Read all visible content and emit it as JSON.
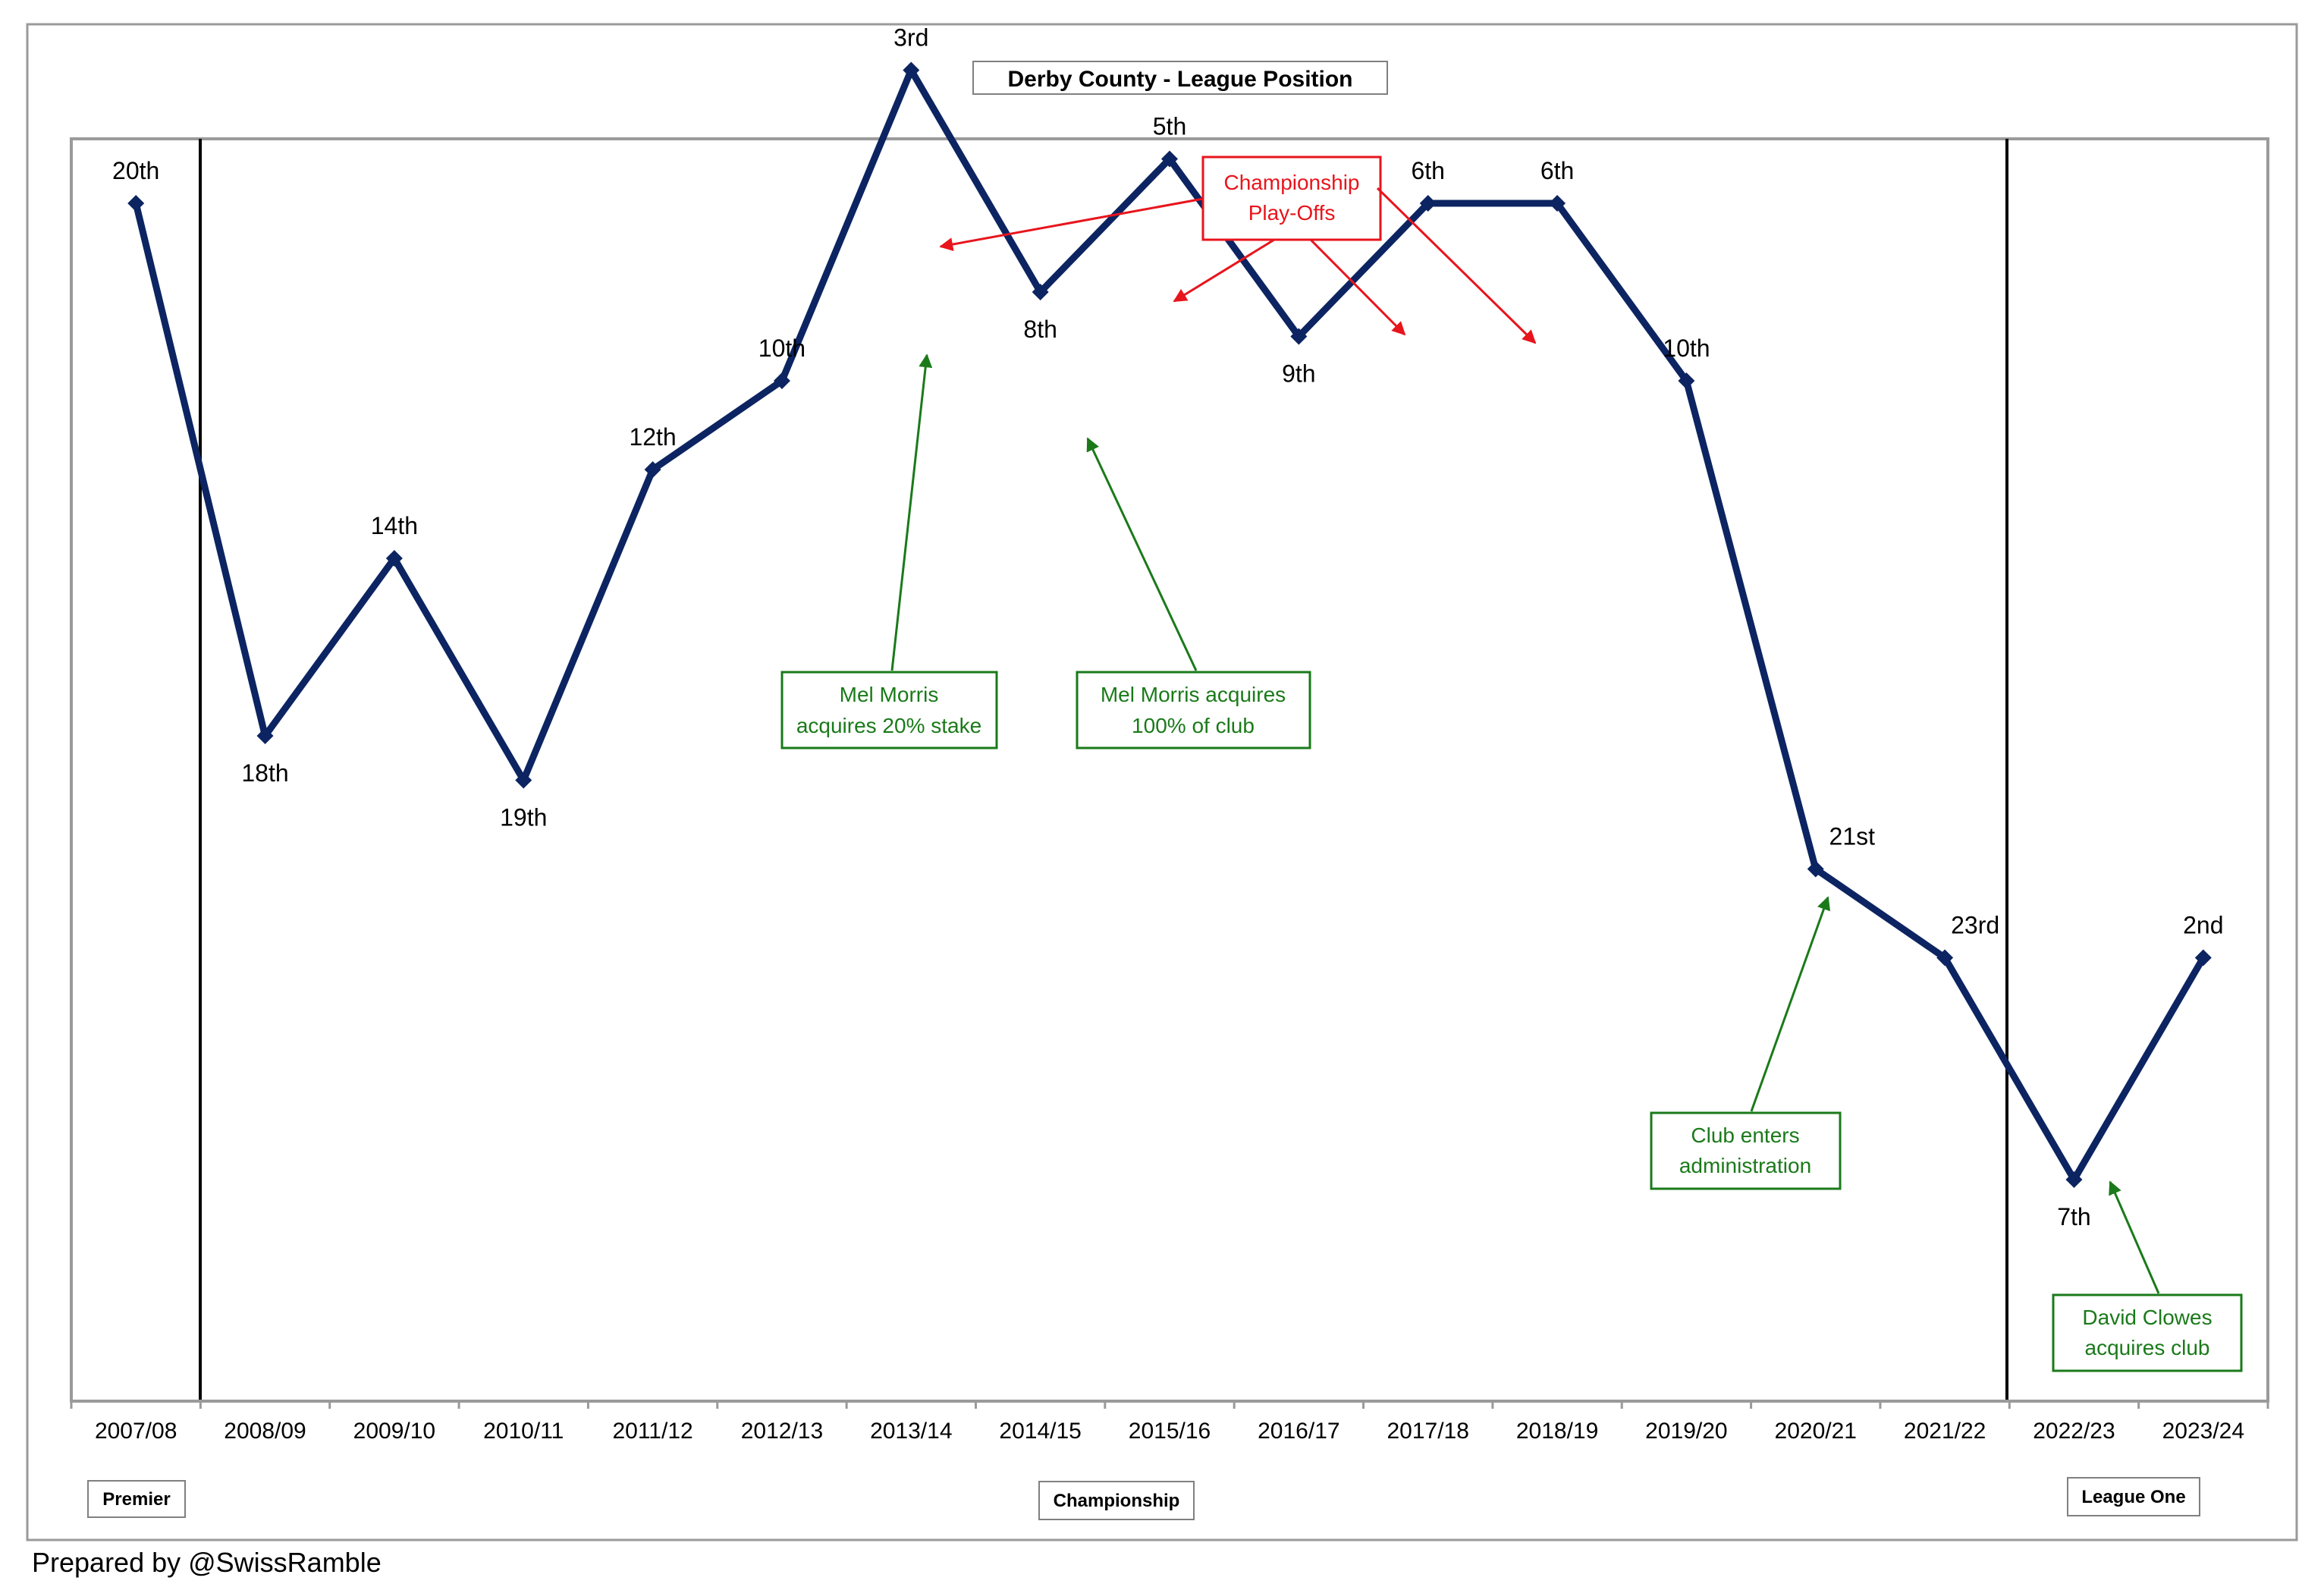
{
  "chart_data": {
    "type": "line",
    "title": "Derby County - League Position",
    "xlabel": "",
    "ylabel": "",
    "grid": false,
    "categories": [
      "2007/08",
      "2008/09",
      "2009/10",
      "2010/11",
      "2011/12",
      "2012/13",
      "2013/14",
      "2014/15",
      "2015/16",
      "2016/17",
      "2017/18",
      "2018/19",
      "2019/20",
      "2020/21",
      "2021/22",
      "2022/23",
      "2023/24"
    ],
    "series": [
      {
        "color": "#0c2461",
        "point_labels": [
          "20th",
          "18th",
          "14th",
          "19th",
          "12th",
          "10th",
          "3rd",
          "8th",
          "5th",
          "9th",
          "6th",
          "6th",
          "10th",
          "21st",
          "23rd",
          "7th",
          "2nd"
        ]
      }
    ],
    "league_points": [
      -19.0,
      -31.0,
      -27.0,
      -32.0,
      -25.0,
      -23.0,
      -16.0,
      -21.0,
      -18.0,
      -22.0,
      -19.0,
      -19.0,
      -23.0,
      -34.0,
      -36.0,
      -41.0,
      -36.0
    ],
    "divisions": [
      {
        "label": "Premier"
      },
      {
        "label": "Championship"
      },
      {
        "label": "League One"
      }
    ],
    "annotations": {
      "playoffs": {
        "line1": "Championship",
        "line2": "Play-Offs",
        "color": "#e8141c"
      },
      "events": [
        {
          "line1": "Mel Morris",
          "line2": "acquires 20% stake"
        },
        {
          "line1": "Mel Morris acquires",
          "line2": "100% of club"
        },
        {
          "line1": "Club enters",
          "line2": "administration"
        },
        {
          "line1": "David Clowes",
          "line2": "acquires club"
        }
      ],
      "event_color": "#1a7a1a"
    }
  },
  "footer": {
    "credit": "Prepared by @SwissRamble"
  }
}
